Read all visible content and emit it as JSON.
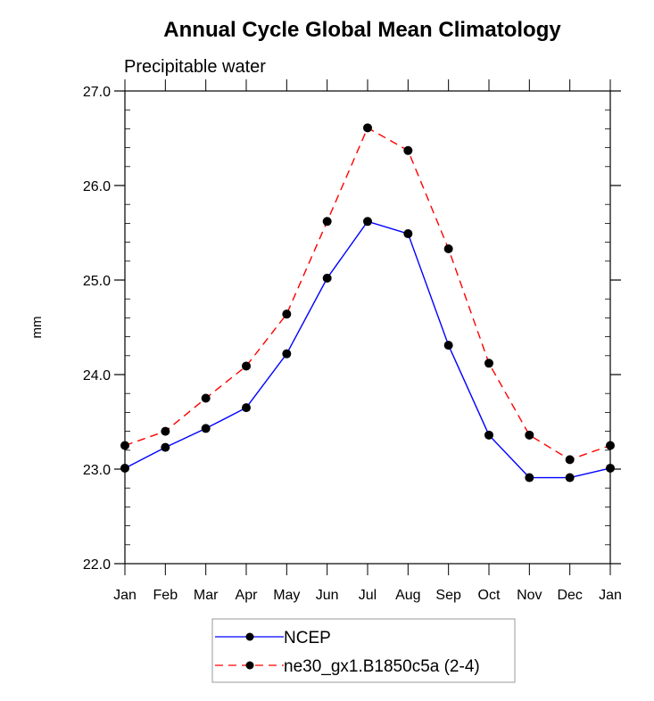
{
  "chart_data": {
    "type": "line",
    "title": "Annual Cycle Global Mean Climatology",
    "subtitle": "Precipitable water",
    "xlabel": "",
    "ylabel": "mm",
    "x": [
      "Jan",
      "Feb",
      "Mar",
      "Apr",
      "May",
      "Jun",
      "Jul",
      "Aug",
      "Sep",
      "Oct",
      "Nov",
      "Dec",
      "Jan"
    ],
    "ylim": [
      22.0,
      27.0
    ],
    "yticks": [
      "22.0",
      "23.0",
      "24.0",
      "25.0",
      "26.0",
      "27.0"
    ],
    "ytick_values": [
      22,
      23,
      24,
      25,
      26,
      27
    ],
    "y_minor_step": 0.2,
    "grid": false,
    "legend_position": "bottom-center",
    "series": [
      {
        "name": "NCEP",
        "color": "#0000ff",
        "dash": "solid",
        "marker": "filled-circle",
        "values": [
          23.01,
          23.23,
          23.43,
          23.65,
          24.22,
          25.02,
          25.62,
          25.49,
          24.31,
          23.36,
          22.91,
          22.91,
          23.01
        ]
      },
      {
        "name": "ne30_gx1.B1850c5a (2-4)",
        "color": "#ff0000",
        "dash": "dashed",
        "marker": "filled-circle",
        "values": [
          23.25,
          23.4,
          23.75,
          24.09,
          24.64,
          25.62,
          26.61,
          26.37,
          25.33,
          24.12,
          23.36,
          23.1,
          23.25
        ]
      }
    ]
  }
}
